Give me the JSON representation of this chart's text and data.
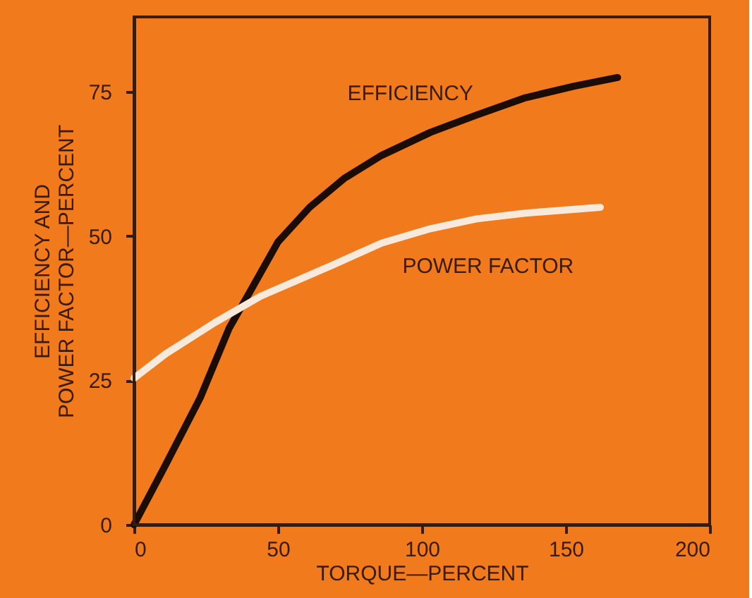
{
  "chart_data": {
    "type": "line",
    "xlabel": "TORQUE—PERCENT",
    "ylabel": "EFFICIENCY AND\nPOWER FACTOR—PERCENT",
    "xlim": [
      0,
      200
    ],
    "xticks": [
      0,
      50,
      100,
      150,
      200
    ],
    "ylim": [
      0,
      88
    ],
    "yticks": [
      0,
      25,
      50,
      75
    ],
    "grid": false,
    "marker": "none",
    "line_style": "solid",
    "series": [
      {
        "name": "EFFICIENCY",
        "color": "#1c0c06",
        "x": [
          0,
          11,
          23,
          33,
          41,
          50,
          61,
          73,
          86,
          103,
          119,
          136,
          153,
          168
        ],
        "values": [
          0,
          10.4,
          22,
          34,
          41,
          49,
          55,
          60,
          64,
          68,
          71,
          74,
          76,
          77.5
        ]
      },
      {
        "name": "POWER FACTOR",
        "color": "#f7eadc",
        "x": [
          0,
          11,
          28,
          44,
          69,
          86,
          103,
          119,
          136,
          162
        ],
        "values": [
          25.4,
          29.6,
          35,
          39.6,
          45,
          48.8,
          51.3,
          53,
          54,
          55
        ]
      }
    ]
  }
}
